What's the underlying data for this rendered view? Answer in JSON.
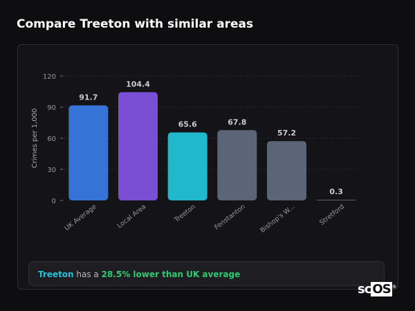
{
  "title": "Compare Treeton with similar areas",
  "chart_data": {
    "type": "bar",
    "categories": [
      "UK Average",
      "Local Area",
      "Treeton",
      "Fenstanton",
      "Bishop's W...",
      "Stretford"
    ],
    "values": [
      91.7,
      104.4,
      65.6,
      67.8,
      57.2,
      0.3
    ],
    "value_labels": [
      "91.7",
      "104.4",
      "65.6",
      "67.8",
      "57.2",
      "0.3"
    ],
    "colors": [
      "#3574d6",
      "#7b4fd3",
      "#20b8cd",
      "#5a6577",
      "#5a6577",
      "#5a6577"
    ],
    "ylabel": "Crimes per 1,000",
    "xlabel": "",
    "ylim": [
      0,
      120
    ],
    "yticks": [
      "0",
      "30",
      "60",
      "90",
      "120"
    ],
    "grid": true
  },
  "summary": {
    "area": "Treeton",
    "middle": " has a ",
    "highlight": "28.5% lower than UK average"
  },
  "logo": {
    "text_sc": "sc",
    "text_os": "OS",
    "mark": "®"
  }
}
